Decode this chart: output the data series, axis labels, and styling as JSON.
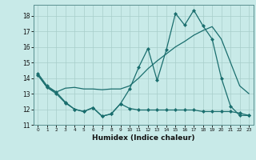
{
  "xlabel": "Humidex (Indice chaleur)",
  "bg_color": "#c8eae8",
  "grid_color": "#a8ceca",
  "line_color": "#1a6e6e",
  "xlim": [
    -0.5,
    23.5
  ],
  "ylim": [
    11,
    18.7
  ],
  "yticks": [
    11,
    12,
    13,
    14,
    15,
    16,
    17,
    18
  ],
  "xticks": [
    0,
    1,
    2,
    3,
    4,
    5,
    6,
    7,
    8,
    9,
    10,
    11,
    12,
    13,
    14,
    15,
    16,
    17,
    18,
    19,
    20,
    21,
    22,
    23
  ],
  "line1_x": [
    0,
    1,
    2,
    3,
    4,
    5,
    6,
    7,
    8,
    9,
    10,
    11,
    12,
    13,
    14,
    15,
    16,
    17,
    18,
    19,
    20,
    21,
    22,
    23
  ],
  "line1_y": [
    14.3,
    13.5,
    13.1,
    12.45,
    12.0,
    11.85,
    12.1,
    11.55,
    11.7,
    12.35,
    13.3,
    14.7,
    15.9,
    13.85,
    15.8,
    18.15,
    17.4,
    18.35,
    17.35,
    16.5,
    14.0,
    12.2,
    11.6,
    11.6
  ],
  "line2_x": [
    0,
    1,
    2,
    3,
    4,
    5,
    6,
    7,
    8,
    9,
    10,
    11,
    12,
    13,
    14,
    15,
    16,
    17,
    18,
    19,
    20,
    21,
    22,
    23
  ],
  "line2_y": [
    14.2,
    13.4,
    13.1,
    13.35,
    13.4,
    13.3,
    13.3,
    13.25,
    13.3,
    13.3,
    13.5,
    14.0,
    14.6,
    15.1,
    15.55,
    16.0,
    16.35,
    16.75,
    17.05,
    17.3,
    16.5,
    15.0,
    13.5,
    13.0
  ],
  "line3_x": [
    0,
    1,
    2,
    3,
    4,
    5,
    6,
    7,
    8,
    9,
    10,
    11,
    12,
    13,
    14,
    15,
    16,
    17,
    18,
    19,
    20,
    21,
    22,
    23
  ],
  "line3_y": [
    14.2,
    13.4,
    13.0,
    12.4,
    12.0,
    11.85,
    12.1,
    11.55,
    11.7,
    12.35,
    12.05,
    11.95,
    11.95,
    11.95,
    11.95,
    11.95,
    11.95,
    11.95,
    11.85,
    11.85,
    11.85,
    11.85,
    11.75,
    11.6
  ]
}
